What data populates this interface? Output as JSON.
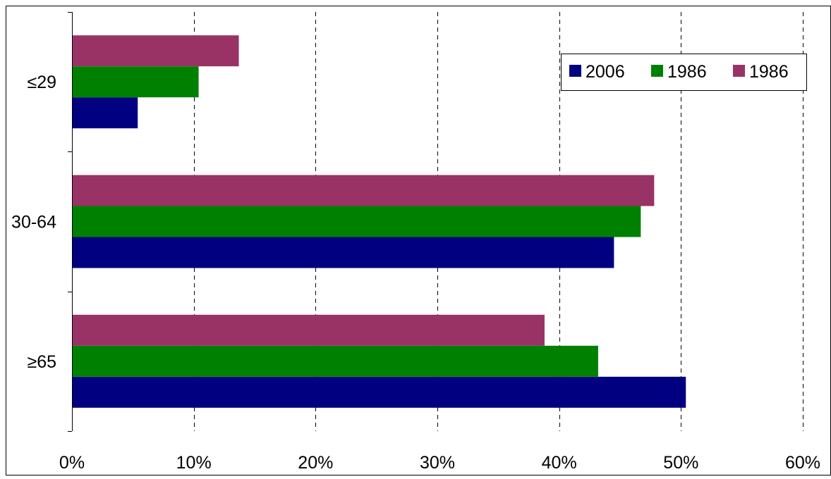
{
  "chart_data": {
    "type": "bar",
    "orientation": "horizontal",
    "categories": [
      "≤29",
      "30-64",
      "≥65"
    ],
    "series": [
      {
        "name": "2006",
        "color": "#000080",
        "values": [
          5.4,
          44.5,
          50.4
        ]
      },
      {
        "name": "1986",
        "color": "#008000",
        "values": [
          10.4,
          46.7,
          43.2
        ]
      },
      {
        "name": "1986",
        "color": "#993366",
        "values": [
          13.7,
          47.8,
          38.8
        ]
      }
    ],
    "xlim": [
      0,
      60
    ],
    "x_ticks": [
      0,
      10,
      20,
      30,
      40,
      50,
      60
    ],
    "x_tick_labels": [
      "0%",
      "10%",
      "20%",
      "30%",
      "40%",
      "50%",
      "60%"
    ],
    "grid": "vertical dashed",
    "legend": {
      "placement": "top-right",
      "items": [
        "2006",
        "1986",
        "1986"
      ]
    },
    "title": "",
    "xlabel": "",
    "ylabel": ""
  }
}
